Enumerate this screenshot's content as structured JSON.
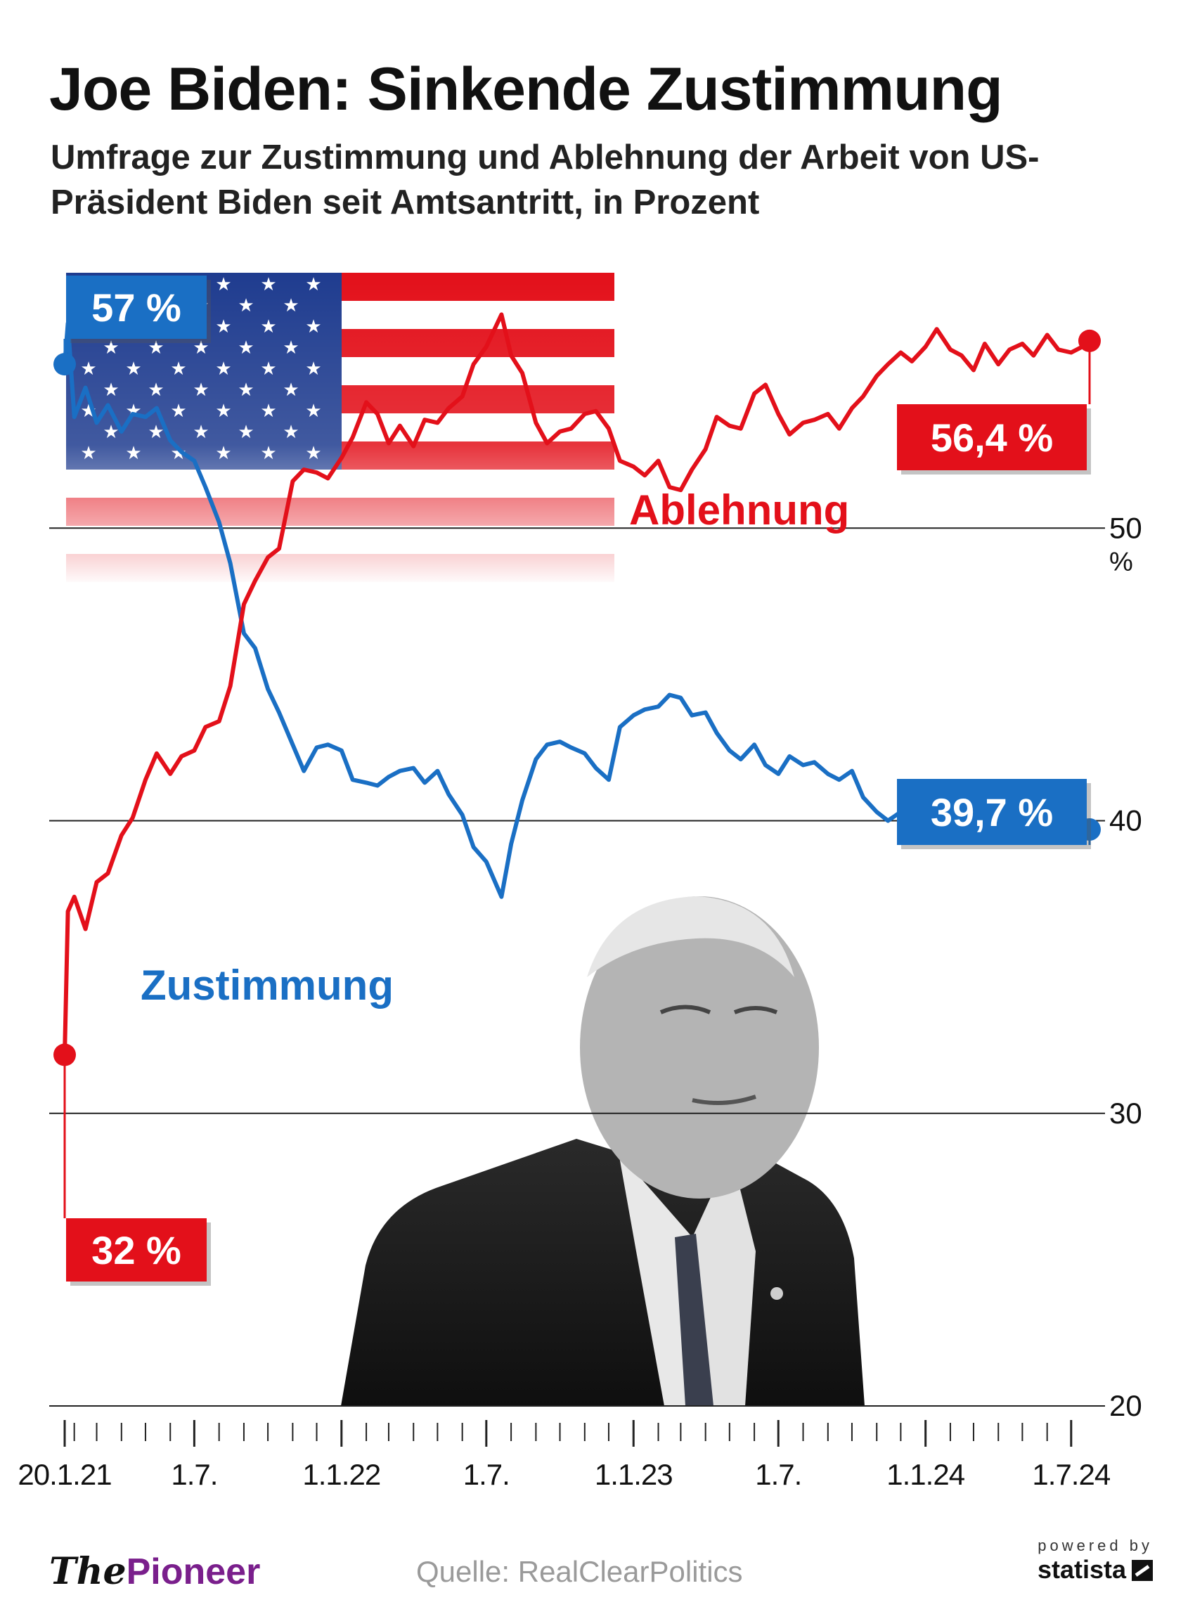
{
  "title": "Joe Biden: Sinkende Zustimmung",
  "subtitle": "Umfrage zur Zustimmung und Ablehnung der Arbeit von US-Präsident Biden seit Amtsantritt, in Prozent",
  "source": "Quelle: RealClearPolitics",
  "brand": {
    "prefix": "The",
    "name": "Pioneer"
  },
  "powered_by": "powered by",
  "statista": "statista",
  "colors": {
    "ablehnung": "#e3101a",
    "zustimmung": "#1a6fc4",
    "grid": "#222222"
  },
  "chart_data": {
    "type": "line",
    "title": "Joe Biden: Sinkende Zustimmung",
    "y_unit": "%",
    "ylim": [
      20,
      60
    ],
    "yticks": [
      20,
      30,
      40,
      50
    ],
    "ytick_labels": [
      "20",
      "30",
      "40",
      "50"
    ],
    "xlim": [
      "2021-01-20",
      "2024-07-31"
    ],
    "xticks": [
      {
        "date": "2021-01-20",
        "label": "20.1.21"
      },
      {
        "date": "2021-07-01",
        "label": "1.7."
      },
      {
        "date": "2022-01-01",
        "label": "1.1.22"
      },
      {
        "date": "2022-07-01",
        "label": "1.7."
      },
      {
        "date": "2023-01-01",
        "label": "1.1.23"
      },
      {
        "date": "2023-07-01",
        "label": "1.7."
      },
      {
        "date": "2024-01-01",
        "label": "1.1.24"
      },
      {
        "date": "2024-07-01",
        "label": "1.7.24"
      }
    ],
    "grid": true,
    "legend": "inline labels",
    "series": [
      {
        "name": "Zustimmung",
        "color": "#1a6fc4",
        "start_label": "57 %",
        "end_label": "39,7 %",
        "points": [
          [
            "2021-01-20",
            55.6
          ],
          [
            "2021-01-24",
            57.0
          ],
          [
            "2021-02-01",
            53.8
          ],
          [
            "2021-02-15",
            54.8
          ],
          [
            "2021-03-01",
            53.6
          ],
          [
            "2021-03-15",
            54.2
          ],
          [
            "2021-04-01",
            53.3
          ],
          [
            "2021-04-15",
            53.9
          ],
          [
            "2021-05-01",
            53.8
          ],
          [
            "2021-05-15",
            54.1
          ],
          [
            "2021-06-01",
            53.0
          ],
          [
            "2021-06-15",
            52.6
          ],
          [
            "2021-07-01",
            52.3
          ],
          [
            "2021-07-15",
            51.4
          ],
          [
            "2021-08-01",
            50.2
          ],
          [
            "2021-08-15",
            48.8
          ],
          [
            "2021-09-01",
            46.4
          ],
          [
            "2021-09-15",
            45.9
          ],
          [
            "2021-10-01",
            44.5
          ],
          [
            "2021-10-15",
            43.7
          ],
          [
            "2021-11-01",
            42.6
          ],
          [
            "2021-11-15",
            41.7
          ],
          [
            "2021-12-01",
            42.5
          ],
          [
            "2021-12-15",
            42.6
          ],
          [
            "2022-01-01",
            42.4
          ],
          [
            "2022-01-15",
            41.4
          ],
          [
            "2022-02-01",
            41.3
          ],
          [
            "2022-02-15",
            41.2
          ],
          [
            "2022-03-01",
            41.5
          ],
          [
            "2022-03-15",
            41.7
          ],
          [
            "2022-04-01",
            41.8
          ],
          [
            "2022-04-15",
            41.3
          ],
          [
            "2022-05-01",
            41.7
          ],
          [
            "2022-05-15",
            40.9
          ],
          [
            "2022-06-01",
            40.2
          ],
          [
            "2022-06-15",
            39.1
          ],
          [
            "2022-07-01",
            38.6
          ],
          [
            "2022-07-20",
            37.4
          ],
          [
            "2022-08-01",
            39.2
          ],
          [
            "2022-08-15",
            40.7
          ],
          [
            "2022-09-01",
            42.1
          ],
          [
            "2022-09-15",
            42.6
          ],
          [
            "2022-10-01",
            42.7
          ],
          [
            "2022-10-15",
            42.5
          ],
          [
            "2022-11-01",
            42.3
          ],
          [
            "2022-11-15",
            41.8
          ],
          [
            "2022-12-01",
            41.4
          ],
          [
            "2022-12-15",
            43.2
          ],
          [
            "2023-01-01",
            43.6
          ],
          [
            "2023-01-15",
            43.8
          ],
          [
            "2023-02-01",
            43.9
          ],
          [
            "2023-02-15",
            44.3
          ],
          [
            "2023-03-01",
            44.2
          ],
          [
            "2023-03-15",
            43.6
          ],
          [
            "2023-04-01",
            43.7
          ],
          [
            "2023-04-15",
            43.0
          ],
          [
            "2023-05-01",
            42.4
          ],
          [
            "2023-05-15",
            42.1
          ],
          [
            "2023-06-01",
            42.6
          ],
          [
            "2023-06-15",
            41.9
          ],
          [
            "2023-07-01",
            41.6
          ],
          [
            "2023-07-15",
            42.2
          ],
          [
            "2023-08-01",
            41.9
          ],
          [
            "2023-08-15",
            42.0
          ],
          [
            "2023-09-01",
            41.6
          ],
          [
            "2023-09-15",
            41.4
          ],
          [
            "2023-10-01",
            41.7
          ],
          [
            "2023-10-15",
            40.8
          ],
          [
            "2023-11-01",
            40.3
          ],
          [
            "2023-11-15",
            40.0
          ],
          [
            "2023-12-01",
            40.3
          ],
          [
            "2023-12-15",
            39.8
          ],
          [
            "2024-01-01",
            40.2
          ],
          [
            "2024-01-15",
            40.4
          ],
          [
            "2024-02-01",
            39.8
          ],
          [
            "2024-02-15",
            40.4
          ],
          [
            "2024-03-01",
            40.6
          ],
          [
            "2024-03-15",
            40.4
          ],
          [
            "2024-04-01",
            40.2
          ],
          [
            "2024-04-15",
            40.7
          ],
          [
            "2024-05-01",
            39.9
          ],
          [
            "2024-05-15",
            40.0
          ],
          [
            "2024-06-01",
            40.3
          ],
          [
            "2024-06-15",
            39.9
          ],
          [
            "2024-07-01",
            40.1
          ],
          [
            "2024-07-15",
            39.8
          ],
          [
            "2024-07-24",
            39.7
          ]
        ]
      },
      {
        "name": "Ablehnung",
        "color": "#e3101a",
        "start_label": "32 %",
        "end_label": "56,4 %",
        "points": [
          [
            "2021-01-20",
            32.0
          ],
          [
            "2021-01-24",
            36.9
          ],
          [
            "2021-02-01",
            37.4
          ],
          [
            "2021-02-15",
            36.3
          ],
          [
            "2021-03-01",
            37.9
          ],
          [
            "2021-03-15",
            38.2
          ],
          [
            "2021-04-01",
            39.5
          ],
          [
            "2021-04-15",
            40.1
          ],
          [
            "2021-05-01",
            41.4
          ],
          [
            "2021-05-15",
            42.3
          ],
          [
            "2021-06-01",
            41.6
          ],
          [
            "2021-06-15",
            42.2
          ],
          [
            "2021-07-01",
            42.4
          ],
          [
            "2021-07-15",
            43.2
          ],
          [
            "2021-08-01",
            43.4
          ],
          [
            "2021-08-15",
            44.6
          ],
          [
            "2021-09-01",
            47.4
          ],
          [
            "2021-09-15",
            48.2
          ],
          [
            "2021-10-01",
            49.0
          ],
          [
            "2021-10-15",
            49.3
          ],
          [
            "2021-11-01",
            51.6
          ],
          [
            "2021-11-15",
            52.0
          ],
          [
            "2021-12-01",
            51.9
          ],
          [
            "2021-12-15",
            51.7
          ],
          [
            "2022-01-01",
            52.4
          ],
          [
            "2022-01-15",
            53.1
          ],
          [
            "2022-02-01",
            54.3
          ],
          [
            "2022-02-15",
            53.9
          ],
          [
            "2022-03-01",
            52.9
          ],
          [
            "2022-03-15",
            53.5
          ],
          [
            "2022-04-01",
            52.8
          ],
          [
            "2022-04-15",
            53.7
          ],
          [
            "2022-05-01",
            53.6
          ],
          [
            "2022-05-15",
            54.1
          ],
          [
            "2022-06-01",
            54.5
          ],
          [
            "2022-06-15",
            55.6
          ],
          [
            "2022-07-01",
            56.2
          ],
          [
            "2022-07-20",
            57.3
          ],
          [
            "2022-08-01",
            55.9
          ],
          [
            "2022-08-15",
            55.3
          ],
          [
            "2022-09-01",
            53.6
          ],
          [
            "2022-09-15",
            52.9
          ],
          [
            "2022-10-01",
            53.3
          ],
          [
            "2022-10-15",
            53.4
          ],
          [
            "2022-11-01",
            53.9
          ],
          [
            "2022-11-15",
            54.0
          ],
          [
            "2022-12-01",
            53.4
          ],
          [
            "2022-12-15",
            52.3
          ],
          [
            "2023-01-01",
            52.1
          ],
          [
            "2023-01-15",
            51.8
          ],
          [
            "2023-02-01",
            52.3
          ],
          [
            "2023-02-15",
            51.4
          ],
          [
            "2023-03-01",
            51.3
          ],
          [
            "2023-03-15",
            52.0
          ],
          [
            "2023-04-01",
            52.7
          ],
          [
            "2023-04-15",
            53.8
          ],
          [
            "2023-05-01",
            53.5
          ],
          [
            "2023-05-15",
            53.4
          ],
          [
            "2023-06-01",
            54.6
          ],
          [
            "2023-06-15",
            54.9
          ],
          [
            "2023-07-01",
            53.9
          ],
          [
            "2023-07-15",
            53.2
          ],
          [
            "2023-08-01",
            53.6
          ],
          [
            "2023-08-15",
            53.7
          ],
          [
            "2023-09-01",
            53.9
          ],
          [
            "2023-09-15",
            53.4
          ],
          [
            "2023-10-01",
            54.1
          ],
          [
            "2023-10-15",
            54.5
          ],
          [
            "2023-11-01",
            55.2
          ],
          [
            "2023-11-15",
            55.6
          ],
          [
            "2023-12-01",
            56.0
          ],
          [
            "2023-12-15",
            55.7
          ],
          [
            "2024-01-01",
            56.2
          ],
          [
            "2024-01-15",
            56.8
          ],
          [
            "2024-02-01",
            56.1
          ],
          [
            "2024-02-15",
            55.9
          ],
          [
            "2024-03-01",
            55.4
          ],
          [
            "2024-03-15",
            56.3
          ],
          [
            "2024-04-01",
            55.6
          ],
          [
            "2024-04-15",
            56.1
          ],
          [
            "2024-05-01",
            56.3
          ],
          [
            "2024-05-15",
            55.9
          ],
          [
            "2024-06-01",
            56.6
          ],
          [
            "2024-06-15",
            56.1
          ],
          [
            "2024-07-01",
            56.0
          ],
          [
            "2024-07-15",
            56.2
          ],
          [
            "2024-07-24",
            56.4
          ]
        ]
      }
    ]
  }
}
